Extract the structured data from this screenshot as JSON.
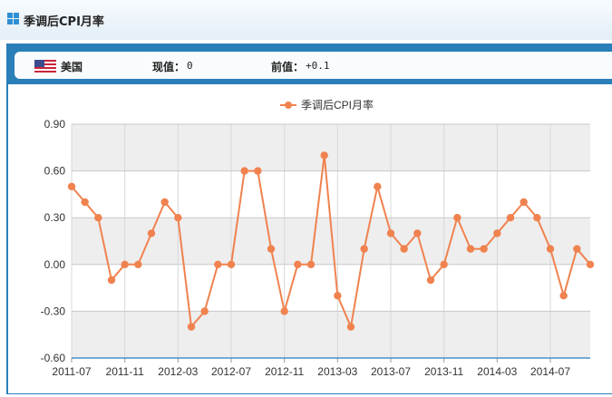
{
  "header": {
    "title": "季调后CPI月率"
  },
  "info": {
    "country": "美国",
    "current_label": "现值：",
    "current_value": "0",
    "previous_label": "前值：",
    "previous_value": "+0.1"
  },
  "icons": {
    "title": "grid-icon",
    "flag": "us-flag-icon"
  },
  "colors": {
    "series": "#f0824f",
    "frame": "#2a7fb8",
    "band": "#eeeeee"
  },
  "chart_data": {
    "type": "line",
    "legend": "top-center",
    "grid": true,
    "ylim": [
      -0.6,
      0.9
    ],
    "yticks": [
      "0.90",
      "0.60",
      "0.30",
      "0.00",
      "-0.30",
      "-0.60"
    ],
    "xticks": [
      "2011-07",
      "2011-11",
      "2012-03",
      "2012-07",
      "2012-11",
      "2013-03",
      "2013-07",
      "2013-11",
      "2014-03",
      "2014-07"
    ],
    "series": [
      {
        "name": "季调后CPI月率",
        "x": [
          "2011-07",
          "2011-08",
          "2011-09",
          "2011-10",
          "2011-11",
          "2011-12",
          "2012-01",
          "2012-02",
          "2012-03",
          "2012-04",
          "2012-05",
          "2012-06",
          "2012-07",
          "2012-08",
          "2012-09",
          "2012-10",
          "2012-11",
          "2012-12",
          "2013-01",
          "2013-02",
          "2013-03",
          "2013-04",
          "2013-05",
          "2013-06",
          "2013-07",
          "2013-08",
          "2013-09",
          "2013-10",
          "2013-11",
          "2013-12",
          "2014-01",
          "2014-02",
          "2014-03",
          "2014-04",
          "2014-05",
          "2014-06",
          "2014-07",
          "2014-08",
          "2014-09",
          "2014-10"
        ],
        "values": [
          0.5,
          0.4,
          0.3,
          -0.1,
          0.0,
          0.0,
          0.2,
          0.4,
          0.3,
          -0.4,
          -0.3,
          0.0,
          0.0,
          0.6,
          0.6,
          0.1,
          -0.3,
          0.0,
          0.0,
          0.7,
          -0.2,
          -0.4,
          0.1,
          0.5,
          0.2,
          0.1,
          0.2,
          -0.1,
          0.0,
          0.3,
          0.1,
          0.1,
          0.2,
          0.3,
          0.4,
          0.3,
          0.1,
          -0.2,
          0.1,
          0.0
        ]
      }
    ]
  }
}
